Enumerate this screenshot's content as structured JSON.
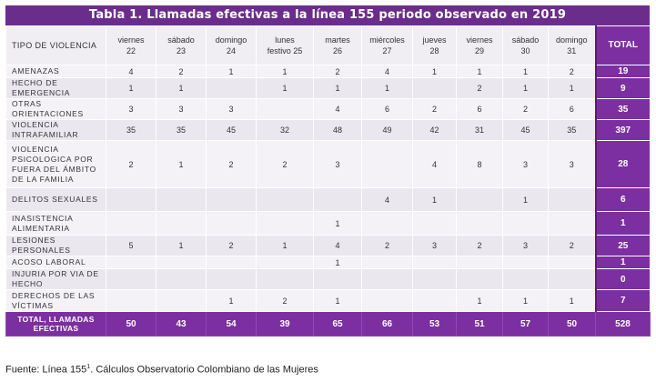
{
  "title": "Tabla 1. Llamadas efectivas a la línea 155 periodo observado en 2019",
  "header": {
    "type_label": "TIPO DE VIOLENCIA",
    "total_label": "TOTAL",
    "days": [
      {
        "name": "viernes",
        "date": "22"
      },
      {
        "name": "sábado",
        "date": "23"
      },
      {
        "name": "domingo",
        "date": "24"
      },
      {
        "name": "lunes",
        "date": "festivo 25"
      },
      {
        "name": "martes",
        "date": "26"
      },
      {
        "name": "miércoles",
        "date": "27"
      },
      {
        "name": "jueves",
        "date": "28"
      },
      {
        "name": "viernes",
        "date": "29"
      },
      {
        "name": "sábado",
        "date": "30"
      },
      {
        "name": "domingo",
        "date": "31"
      }
    ]
  },
  "rows": [
    {
      "type": "AMENAZAS",
      "values": [
        "4",
        "2",
        "1",
        "1",
        "2",
        "4",
        "1",
        "1",
        "1",
        "2"
      ],
      "total": "19"
    },
    {
      "type": "HECHO DE EMERGENCIA",
      "values": [
        "1",
        "1",
        "",
        "1",
        "1",
        "1",
        "",
        "2",
        "1",
        "1"
      ],
      "total": "9"
    },
    {
      "type": "OTRAS ORIENTACIONES",
      "values": [
        "3",
        "3",
        "3",
        "",
        "4",
        "6",
        "2",
        "6",
        "2",
        "6"
      ],
      "total": "35"
    },
    {
      "type": "VIOLENCIA INTRAFAMILIAR",
      "values": [
        "35",
        "35",
        "45",
        "32",
        "48",
        "49",
        "42",
        "31",
        "45",
        "35"
      ],
      "total": "397"
    },
    {
      "type": "VIOLENCIA PSICOLOGICA POR FUERA DEL ÁMBITO DE LA FAMILIA",
      "values": [
        "2",
        "1",
        "2",
        "2",
        "3",
        "",
        "4",
        "8",
        "3",
        "3"
      ],
      "total": "28"
    },
    {
      "type": "DELITOS SEXUALES",
      "values": [
        "",
        "",
        "",
        "",
        "",
        "4",
        "1",
        "",
        "1",
        ""
      ],
      "total": "6"
    },
    {
      "type": "INASISTENCIA ALIMENTARIA",
      "values": [
        "",
        "",
        "",
        "",
        "1",
        "",
        "",
        "",
        "",
        ""
      ],
      "total": "1"
    },
    {
      "type": "LESIONES PERSONALES",
      "values": [
        "5",
        "1",
        "2",
        "1",
        "4",
        "2",
        "3",
        "2",
        "3",
        "2"
      ],
      "total": "25"
    },
    {
      "type": "ACOSO LABORAL",
      "values": [
        "",
        "",
        "",
        "",
        "1",
        "",
        "",
        "",
        "",
        ""
      ],
      "total": "1"
    },
    {
      "type": "INJURIA POR VIA DE HECHO",
      "values": [
        "",
        "",
        "",
        "",
        "",
        "",
        "",
        "",
        "",
        ""
      ],
      "total": "0"
    },
    {
      "type": "DERECHOS DE LAS VÍCTIMAS",
      "values": [
        "",
        "",
        "1",
        "2",
        "1",
        "",
        "",
        "1",
        "1",
        "1"
      ],
      "total": "7"
    }
  ],
  "totals": {
    "label": "TOTAL, LLAMADAS EFECTIVAS",
    "values": [
      "50",
      "43",
      "54",
      "39",
      "65",
      "66",
      "53",
      "51",
      "57",
      "50"
    ],
    "total": "528"
  },
  "source": {
    "prefix": "Fuente: Línea 155",
    "sup": "1",
    "suffix": ". Cálculos Observatorio Colombiano de las Mujeres"
  },
  "colors": {
    "accent": "#7b2fa0",
    "title_bg": "#6b2d8b"
  }
}
